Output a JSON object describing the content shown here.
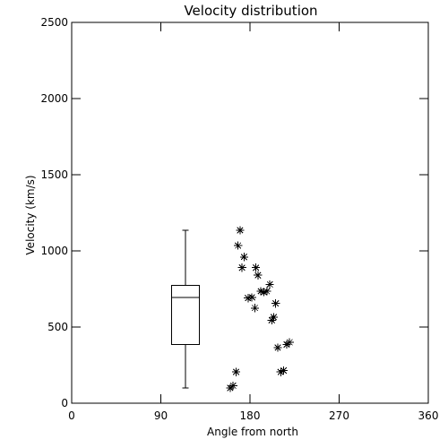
{
  "chart_data": {
    "type": "scatter",
    "title": "Velocity distribution",
    "xlabel": "Angle from north",
    "ylabel": "Velocity (km/s)",
    "xlim": [
      0,
      360
    ],
    "ylim": [
      0,
      2500
    ],
    "xticks": [
      0,
      90,
      180,
      270,
      360
    ],
    "yticks": [
      0,
      500,
      1000,
      1500,
      2000,
      2500
    ],
    "xtick_labels": [
      "0",
      "90",
      "180",
      "270",
      "360"
    ],
    "ytick_labels": [
      "0",
      "500",
      "1000",
      "1500",
      "2000",
      "2500"
    ],
    "grid": false,
    "marker": "asterisk",
    "boxplot": {
      "x_center": 115,
      "x_range": [
        101,
        129
      ],
      "min": 100,
      "q1": 385,
      "median": 695,
      "q3": 775,
      "max": 1135
    },
    "points": [
      {
        "x": 160,
        "y": 100
      },
      {
        "x": 163,
        "y": 115
      },
      {
        "x": 166,
        "y": 205
      },
      {
        "x": 170,
        "y": 1135
      },
      {
        "x": 168,
        "y": 1035
      },
      {
        "x": 172,
        "y": 890
      },
      {
        "x": 174,
        "y": 960
      },
      {
        "x": 178,
        "y": 690
      },
      {
        "x": 182,
        "y": 695
      },
      {
        "x": 185,
        "y": 625
      },
      {
        "x": 186,
        "y": 890
      },
      {
        "x": 188,
        "y": 840
      },
      {
        "x": 191,
        "y": 735
      },
      {
        "x": 194,
        "y": 730
      },
      {
        "x": 197,
        "y": 735
      },
      {
        "x": 200,
        "y": 780
      },
      {
        "x": 202,
        "y": 545
      },
      {
        "x": 204,
        "y": 565
      },
      {
        "x": 206,
        "y": 655
      },
      {
        "x": 208,
        "y": 365
      },
      {
        "x": 211,
        "y": 205
      },
      {
        "x": 214,
        "y": 215
      },
      {
        "x": 217,
        "y": 385
      },
      {
        "x": 220,
        "y": 400
      }
    ]
  }
}
